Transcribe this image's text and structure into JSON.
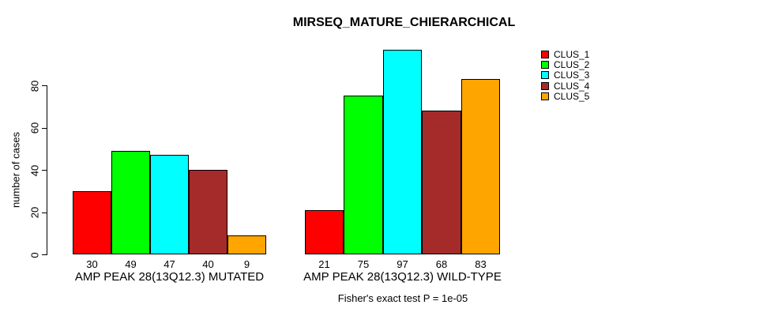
{
  "chart_data": {
    "type": "bar",
    "title": "MIRSEQ_MATURE_CHIERARCHICAL",
    "ylabel": "number of cases",
    "caption": "Fisher's exact test P = 1e-05",
    "ylim": [
      0,
      80
    ],
    "yticks": [
      0,
      20,
      40,
      60,
      80
    ],
    "grid": false,
    "legend_position": "right",
    "series_names": [
      "CLUS_1",
      "CLUS_2",
      "CLUS_3",
      "CLUS_4",
      "CLUS_5"
    ],
    "colors": [
      "#ff0000",
      "#00ff00",
      "#00ffff",
      "#a52a2a",
      "#ffa500"
    ],
    "groups": [
      {
        "label": "AMP PEAK 28(13Q12.3) MUTATED",
        "values": [
          30,
          49,
          47,
          40,
          9
        ]
      },
      {
        "label": "AMP PEAK 28(13Q12.3) WILD-TYPE",
        "values": [
          21,
          75,
          97,
          68,
          83
        ]
      }
    ]
  }
}
